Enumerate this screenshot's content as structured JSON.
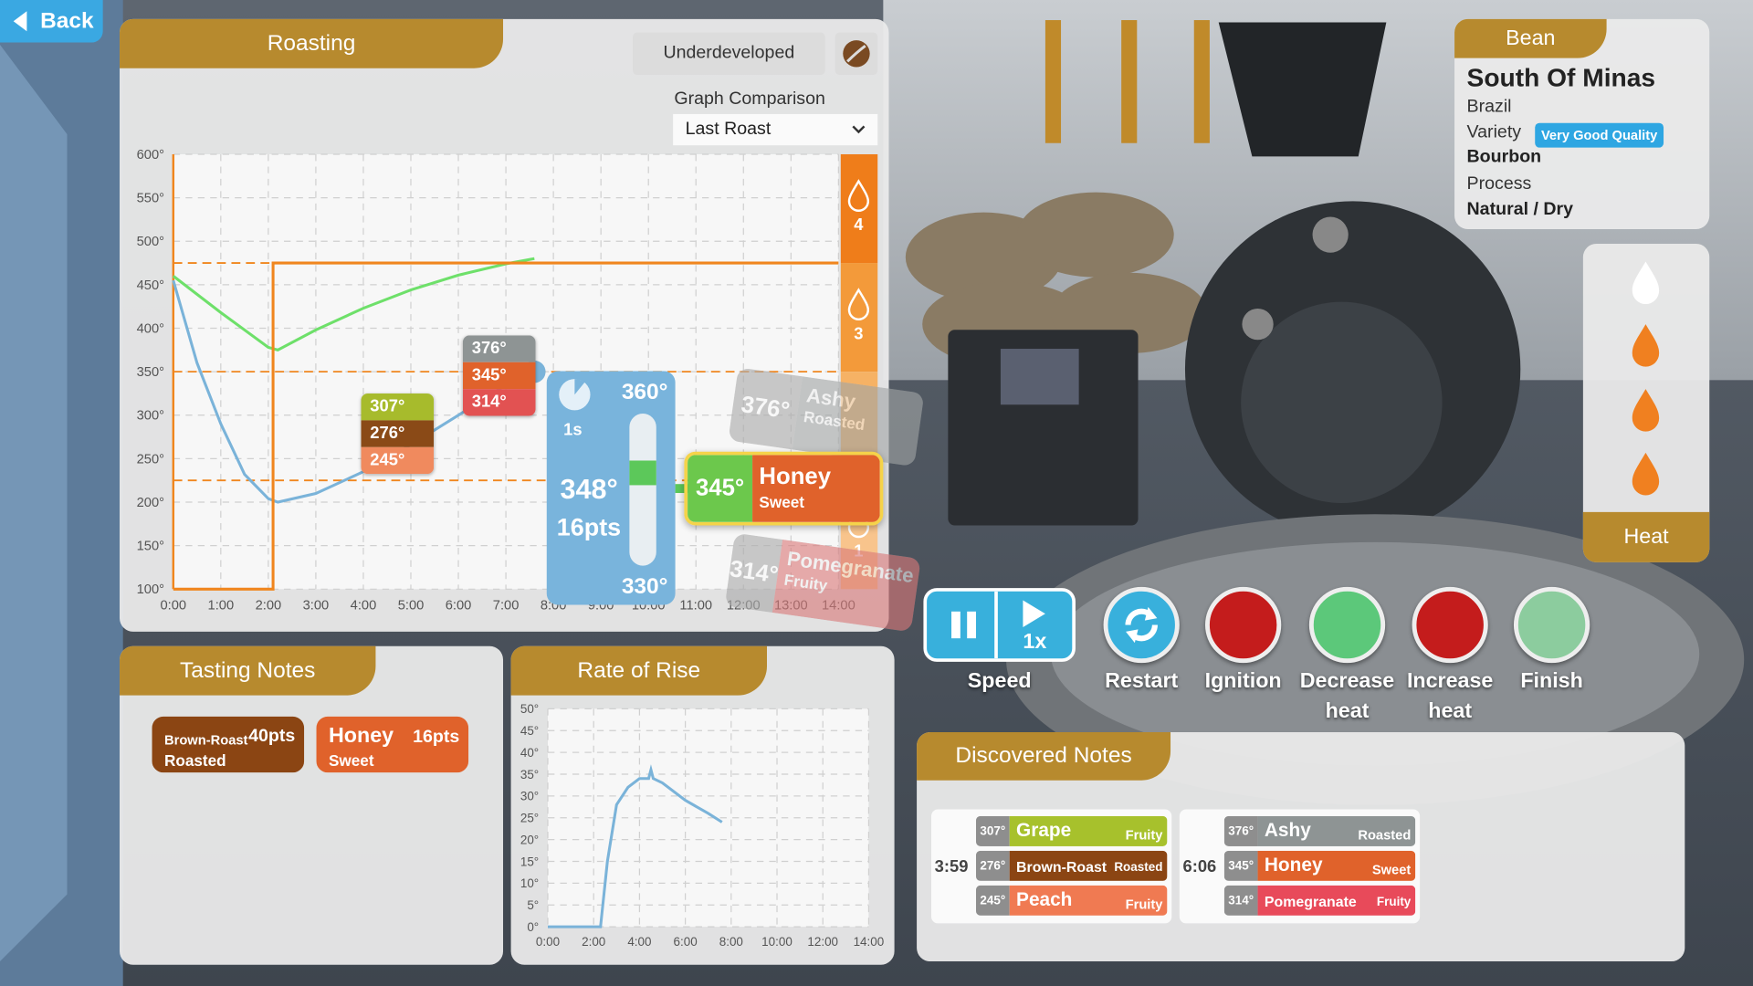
{
  "back": "Back",
  "roasting": {
    "title": "Roasting",
    "status": "Underdeveloped",
    "comparison_label": "Graph Comparison",
    "comparison_value": "Last Roast",
    "chart": {
      "type": "line",
      "xlim": [
        0,
        14
      ],
      "ylim": [
        100,
        600
      ],
      "grid": true,
      "xticks": [
        {
          "value": 0,
          "label": "0:00"
        },
        {
          "value": 1,
          "label": "1:00"
        },
        {
          "value": 2,
          "label": "2:00"
        },
        {
          "value": 3,
          "label": "3:00"
        },
        {
          "value": 4,
          "label": "4:00"
        },
        {
          "value": 5,
          "label": "5:00"
        },
        {
          "value": 6,
          "label": "6:00"
        },
        {
          "value": 7,
          "label": "7:00"
        },
        {
          "value": 8,
          "label": "8:00"
        },
        {
          "value": 9,
          "label": "9:00"
        },
        {
          "value": 10,
          "label": "10:00"
        },
        {
          "value": 11,
          "label": "11:00"
        },
        {
          "value": 12,
          "label": "12:00"
        },
        {
          "value": 13,
          "label": "13:00"
        },
        {
          "value": 14,
          "label": "14:00"
        }
      ],
      "yticks": [
        {
          "value": 100,
          "label": "100°"
        },
        {
          "value": 150,
          "label": "150°"
        },
        {
          "value": 200,
          "label": "200°"
        },
        {
          "value": 250,
          "label": "250°"
        },
        {
          "value": 300,
          "label": "300°"
        },
        {
          "value": 350,
          "label": "350°"
        },
        {
          "value": 400,
          "label": "400°"
        },
        {
          "value": 450,
          "label": "450°"
        },
        {
          "value": 500,
          "label": "500°"
        },
        {
          "value": 550,
          "label": "550°"
        },
        {
          "value": 600,
          "label": "600°"
        }
      ],
      "heat_thresholds": [
        225,
        350,
        475
      ],
      "heat_labels": [
        "4",
        "3",
        null,
        "1"
      ],
      "series": [
        {
          "color": "#7ab3d9",
          "x": [
            0,
            0.5,
            1,
            1.5,
            2,
            2.2,
            3,
            4,
            5,
            6,
            7,
            7.6
          ],
          "values": [
            455,
            360,
            290,
            232,
            204,
            200,
            210,
            235,
            266,
            300,
            335,
            350
          ]
        },
        {
          "color": "#6ee06a",
          "x": [
            0,
            1,
            2,
            2.2,
            3,
            4,
            5,
            6,
            7,
            7.6
          ],
          "values": [
            460,
            418,
            378,
            375,
            398,
            423,
            444,
            461,
            474,
            480
          ]
        },
        {
          "color": "#f0861e",
          "x": [
            0,
            2.1,
            2.1,
            14
          ],
          "values": [
            100,
            100,
            475,
            475
          ]
        }
      ],
      "markers": [
        {
          "temps": [
            "307°",
            "276°",
            "245°"
          ],
          "colors": [
            "#a7bb2c",
            "#8a4a17",
            "#f08a5e"
          ]
        },
        {
          "temps": [
            "376°",
            "345°",
            "314°"
          ],
          "colors": [
            "#8e9494",
            "#e0622b",
            "#e25252"
          ]
        }
      ],
      "current": {
        "max": "360°",
        "time": "1s",
        "temp": "348°",
        "points": "16pts",
        "min": "330°"
      },
      "popups": [
        {
          "temp": "376°",
          "name": "Ashy",
          "category": "Roasted",
          "color": "#8e9494"
        },
        {
          "temp": "345°",
          "name": "Honey",
          "category": "Sweet",
          "color": "#e0622b"
        },
        {
          "temp": "314°",
          "name": "Pomegranate",
          "category": "Fruity",
          "color": "#e25252"
        }
      ]
    }
  },
  "tasting_notes": {
    "title": "Tasting Notes",
    "notes": [
      {
        "name": "Brown-Roast",
        "category": "Roasted",
        "points": "40pts",
        "color": "#8b4513"
      },
      {
        "name": "Honey",
        "category": "Sweet",
        "points": "16pts",
        "color": "#e0622b"
      }
    ]
  },
  "rate_of_rise": {
    "title": "Rate of Rise",
    "chart": {
      "type": "line",
      "xlim": [
        0,
        14
      ],
      "ylim": [
        0,
        50
      ],
      "grid": true,
      "xticks": [
        {
          "value": 0,
          "label": "0:00"
        },
        {
          "value": 2,
          "label": "2:00"
        },
        {
          "value": 4,
          "label": "4:00"
        },
        {
          "value": 6,
          "label": "6:00"
        },
        {
          "value": 8,
          "label": "8:00"
        },
        {
          "value": 10,
          "label": "10:00"
        },
        {
          "value": 12,
          "label": "12:00"
        },
        {
          "value": 14,
          "label": "14:00"
        }
      ],
      "yticks": [
        {
          "value": 0,
          "label": "0°"
        },
        {
          "value": 5,
          "label": "5°"
        },
        {
          "value": 10,
          "label": "10°"
        },
        {
          "value": 15,
          "label": "15°"
        },
        {
          "value": 20,
          "label": "20°"
        },
        {
          "value": 25,
          "label": "25°"
        },
        {
          "value": 30,
          "label": "30°"
        },
        {
          "value": 35,
          "label": "35°"
        },
        {
          "value": 40,
          "label": "40°"
        },
        {
          "value": 45,
          "label": "45°"
        },
        {
          "value": 50,
          "label": "50°"
        }
      ],
      "series": [
        {
          "color": "#7ab3d9",
          "x": [
            0,
            2.3,
            2.6,
            3,
            3.5,
            4,
            4.4,
            4.5,
            4.6,
            5,
            6,
            7,
            7.6
          ],
          "values": [
            0,
            0,
            15,
            28,
            32,
            34,
            34,
            36,
            34,
            33,
            29,
            26,
            24
          ]
        }
      ]
    }
  },
  "controls": [
    {
      "label": "Speed",
      "speed": "1x"
    },
    {
      "label": "Restart",
      "color": "#38b0dc"
    },
    {
      "label": "Ignition",
      "color": "#c41c1c"
    },
    {
      "label": "Decrease heat",
      "color": "#5cc87a"
    },
    {
      "label": "Increase heat",
      "color": "#c41c1c"
    },
    {
      "label": "Finish",
      "color": "#8ccc9e"
    }
  ],
  "bean": {
    "title": "Bean",
    "name": "South Of Minas",
    "origin": "Brazil",
    "variety_label": "Variety",
    "quality": "Very Good Quality",
    "variety": "Bourbon",
    "process_label": "Process",
    "process": "Natural / Dry"
  },
  "heat_panel": {
    "title": "Heat"
  },
  "discovered": {
    "title": "Discovered Notes",
    "groups": [
      {
        "time": "3:59",
        "notes": [
          {
            "temp": "307°",
            "name": "Grape",
            "category": "Fruity",
            "color": "#a7c12c"
          },
          {
            "temp": "276°",
            "name": "Brown-Roast",
            "category": "Roasted",
            "color": "#8b4513"
          },
          {
            "temp": "245°",
            "name": "Peach",
            "category": "Fruity",
            "color": "#f07a52"
          }
        ]
      },
      {
        "time": "6:06",
        "notes": [
          {
            "temp": "376°",
            "name": "Ashy",
            "category": "Roasted",
            "color": "#8e9494"
          },
          {
            "temp": "345°",
            "name": "Honey",
            "category": "Sweet",
            "color": "#e0622b"
          },
          {
            "temp": "314°",
            "name": "Pomegranate",
            "category": "Fruity",
            "color": "#e84a5a"
          }
        ]
      }
    ]
  }
}
